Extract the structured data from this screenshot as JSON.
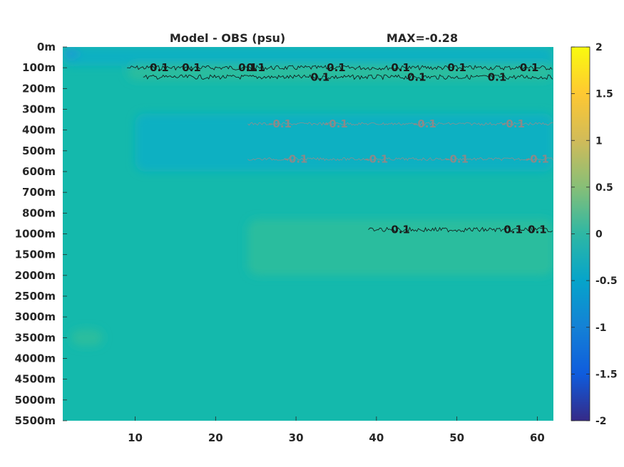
{
  "chart_data": {
    "type": "heatmap",
    "title": "Model - OBS (psu)",
    "subtitle": "MAX=-0.28",
    "xlabel": "",
    "ylabel": "",
    "xlim": [
      1,
      62
    ],
    "x_ticks": [
      10,
      20,
      30,
      40,
      50,
      60
    ],
    "y_tick_labels": [
      "0m",
      "100m",
      "200m",
      "300m",
      "400m",
      "500m",
      "600m",
      "700m",
      "800m",
      "1000m",
      "1500m",
      "2000m",
      "2500m",
      "3000m",
      "3500m",
      "4000m",
      "4500m",
      "5000m",
      "5500m"
    ],
    "colorbar": {
      "colormap": "parula",
      "clim": [
        -2,
        2
      ],
      "ticks": [
        "2",
        "1.5",
        "1",
        "0.5",
        "0",
        "-0.5",
        "-1",
        "-1.5",
        "-2"
      ],
      "tick_values": [
        2,
        1.5,
        1,
        0.5,
        0,
        -0.5,
        -1,
        -1.5,
        -2
      ]
    },
    "field_colors": {
      "background": "#14b9ac",
      "slightly_positive": "#2bbd9e",
      "slightly_negative": "#0fb0c2",
      "near_surface_west": "#1a9fd0"
    },
    "contours": [
      {
        "level": "0.1",
        "style": "black",
        "depth_index": 1.0,
        "x_range": [
          9,
          62
        ],
        "labels": [
          {
            "x": 13,
            "text": "0.1"
          },
          {
            "x": 17,
            "text": "0.1"
          },
          {
            "x": 24,
            "text": "0.1"
          },
          {
            "x": 25,
            "text": "0.1"
          },
          {
            "x": 35,
            "text": "0.1"
          },
          {
            "x": 43,
            "text": "0.1"
          },
          {
            "x": 50,
            "text": "0.1"
          },
          {
            "x": 59,
            "text": "0.1"
          }
        ]
      },
      {
        "level": "0.1",
        "style": "black",
        "depth_index": 1.45,
        "x_range": [
          11,
          62
        ],
        "labels": [
          {
            "x": 33,
            "text": "0.1"
          },
          {
            "x": 45,
            "text": "0.1"
          },
          {
            "x": 55,
            "text": "0.1"
          }
        ]
      },
      {
        "level": "-0.1",
        "style": "grey",
        "depth_index": 3.7,
        "x_range": [
          24,
          62
        ],
        "labels": [
          {
            "x": 28,
            "text": "-0.1"
          },
          {
            "x": 35,
            "text": "-0.1"
          },
          {
            "x": 46,
            "text": "-0.1"
          },
          {
            "x": 57,
            "text": "-0.1"
          }
        ]
      },
      {
        "level": "-0.1",
        "style": "grey",
        "depth_index": 5.4,
        "x_range": [
          24,
          62
        ],
        "labels": [
          {
            "x": 30,
            "text": "-0.1"
          },
          {
            "x": 40,
            "text": "-0.1"
          },
          {
            "x": 50,
            "text": "-0.1"
          },
          {
            "x": 60,
            "text": "-0.1"
          }
        ]
      },
      {
        "level": "0.1",
        "style": "black",
        "depth_index": 8.8,
        "x_range": [
          39,
          62
        ],
        "labels": [
          {
            "x": 43,
            "text": "0.1"
          },
          {
            "x": 60,
            "text": "0.1"
          },
          {
            "x": 57,
            "text": "0.1"
          }
        ]
      }
    ]
  }
}
